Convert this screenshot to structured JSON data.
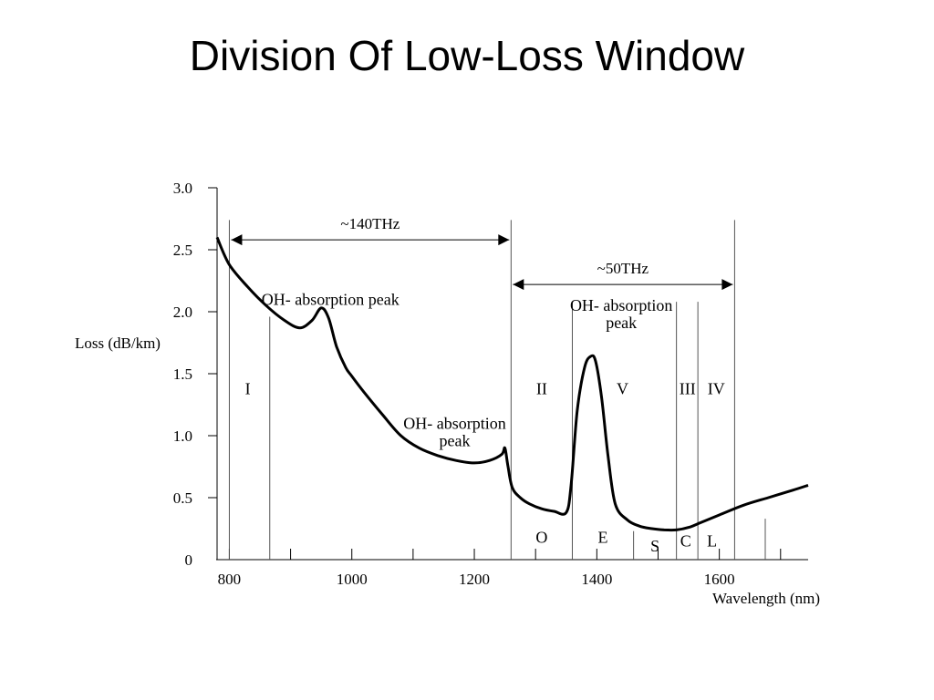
{
  "slide": {
    "title": "Division Of Low-Loss Window"
  },
  "chart_data": {
    "type": "line",
    "title": "",
    "xlabel": "Wavelength (nm)",
    "ylabel": "Loss (dB/km)",
    "xlim": [
      780,
      1745
    ],
    "ylim": [
      0,
      3.0
    ],
    "x_ticks": [
      800,
      1000,
      1200,
      1400,
      1600
    ],
    "y_ticks": [
      {
        "value": 0,
        "label": "0"
      },
      {
        "value": 0.5,
        "label": "0.5"
      },
      {
        "value": 1.0,
        "label": "1.0"
      },
      {
        "value": 1.5,
        "label": "1.5"
      },
      {
        "value": 2.0,
        "label": "2.0"
      },
      {
        "value": 2.5,
        "label": "2.5"
      },
      {
        "value": 3.0,
        "label": "3.0"
      }
    ],
    "grid": false,
    "series": [
      {
        "name": "",
        "x": [
          780,
          800,
          830,
          860,
          890,
          915,
          935,
          950,
          962,
          975,
          990,
          1000,
          1020,
          1050,
          1080,
          1110,
          1140,
          1170,
          1200,
          1225,
          1245,
          1250,
          1255,
          1262,
          1275,
          1290,
          1310,
          1330,
          1350,
          1358,
          1368,
          1380,
          1390,
          1398,
          1408,
          1418,
          1430,
          1450,
          1470,
          1490,
          1510,
          1530,
          1550,
          1570,
          1600,
          1640,
          1680,
          1720,
          1745
        ],
        "y": [
          2.6,
          2.38,
          2.2,
          2.05,
          1.93,
          1.87,
          1.93,
          2.03,
          1.95,
          1.72,
          1.55,
          1.48,
          1.35,
          1.17,
          1.0,
          0.9,
          0.84,
          0.8,
          0.78,
          0.8,
          0.85,
          0.9,
          0.75,
          0.58,
          0.5,
          0.45,
          0.41,
          0.39,
          0.38,
          0.6,
          1.2,
          1.55,
          1.64,
          1.6,
          1.3,
          0.85,
          0.45,
          0.32,
          0.27,
          0.25,
          0.24,
          0.24,
          0.26,
          0.3,
          0.36,
          0.44,
          0.5,
          0.56,
          0.6
        ]
      }
    ],
    "boundaries": [
      800,
      866,
      1260,
      1360,
      1460,
      1530,
      1565,
      1625,
      1675
    ],
    "arrows": [
      {
        "label": "~140THz",
        "from": 800,
        "to": 1260,
        "y": 2.58
      },
      {
        "label": "~50THz",
        "from": 1260,
        "to": 1625,
        "y": 2.22
      }
    ],
    "window_labels": [
      {
        "text": "I",
        "x": 830,
        "y": 1.38
      },
      {
        "text": "II",
        "x": 1310,
        "y": 1.38
      },
      {
        "text": "V",
        "x": 1442,
        "y": 1.38
      },
      {
        "text": "III",
        "x": 1548,
        "y": 1.38
      },
      {
        "text": "IV",
        "x": 1595,
        "y": 1.38
      }
    ],
    "band_labels": [
      {
        "text": "O",
        "x": 1310,
        "y": 0.18
      },
      {
        "text": "E",
        "x": 1410,
        "y": 0.18
      },
      {
        "text": "S",
        "x": 1495,
        "y": 0.11
      },
      {
        "text": "C",
        "x": 1545,
        "y": 0.15
      },
      {
        "text": "L",
        "x": 1588,
        "y": 0.15
      }
    ],
    "annotations": [
      {
        "lines": [
          "OH- absorption peak"
        ],
        "x": 965,
        "y": 2.1
      },
      {
        "lines": [
          "OH- absorption",
          "peak"
        ],
        "x": 1168,
        "y": 1.1
      },
      {
        "lines": [
          "OH- absorption",
          "peak"
        ],
        "x": 1440,
        "y": 2.05
      }
    ]
  }
}
